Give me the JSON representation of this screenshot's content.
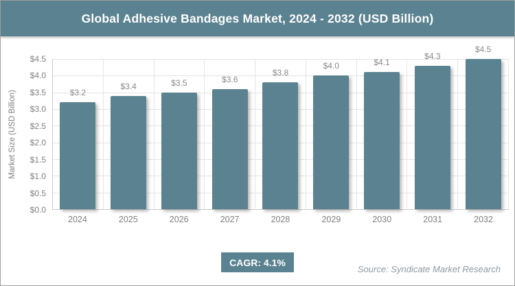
{
  "banner": {
    "title": "Global Adhesive Bandages Market, 2024 - 2032 (USD Billion)"
  },
  "chart_data": {
    "type": "bar",
    "title": "Global Adhesive Bandages Market, 2024 - 2032 (USD Billion)",
    "categories": [
      "2024",
      "2025",
      "2026",
      "2027",
      "2028",
      "2029",
      "2030",
      "2031",
      "2032"
    ],
    "values": [
      3.2,
      3.4,
      3.5,
      3.6,
      3.8,
      4.0,
      4.1,
      4.3,
      4.5
    ],
    "bar_labels": [
      "$3.2",
      "$3.4",
      "$3.5",
      "$3.6",
      "$3.8",
      "$4.0",
      "$4.1",
      "$4.3",
      "$4.5"
    ],
    "xlabel": "",
    "ylabel": "Market Size (USD Billion)",
    "ylim": [
      0,
      4.5
    ],
    "ytick_step": 0.5,
    "ytick_labels": [
      "$0.0",
      "$0.5",
      "$1.0",
      "$1.5",
      "$2.0",
      "$2.5",
      "$3.0",
      "$3.5",
      "$4.0",
      "$4.5"
    ],
    "grid": true,
    "legend": "none",
    "bar_color": "#5b8290"
  },
  "footer": {
    "cagr_label": "CAGR: 4.1%",
    "source": "Source: Syndicate Market Research"
  }
}
